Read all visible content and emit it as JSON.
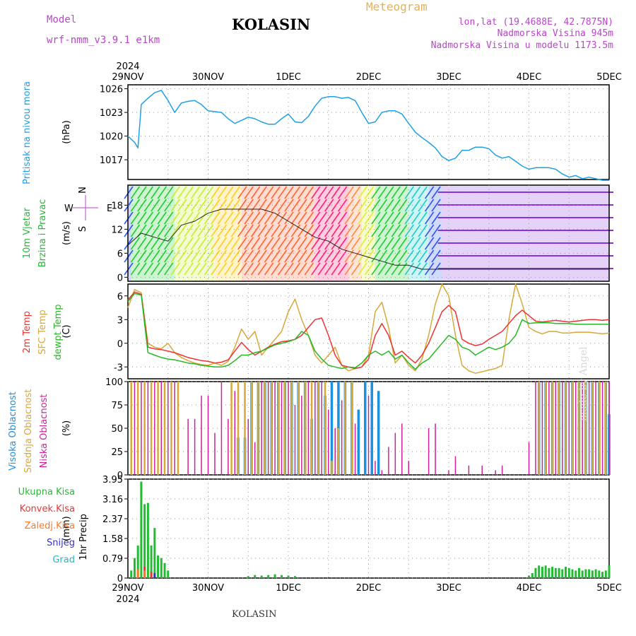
{
  "header": {
    "model_label": "Model",
    "model_name": "wrf-nmm_v3.9.1 e1km",
    "station": "KOLASIN",
    "chart_kind": "Meteogram",
    "lonlat": "lon,lat (19.4688E, 42.7875N)",
    "elevation": "Nadmorska Visina 945m",
    "model_elevation": "Nadmorska Visina u modelu 1173.5m",
    "credit": "made by Angel",
    "footer_station": "KOLASIN"
  },
  "x_axis": {
    "year_top": "2024",
    "year_bottom": "2024",
    "day_labels": [
      "29NOV",
      "30NOV",
      "1DEC",
      "2DEC",
      "3DEC",
      "4DEC",
      "5DEC"
    ],
    "range_hours": [
      0,
      144
    ]
  },
  "colors": {
    "pressure": "#1ea0e6",
    "temp2m": "#ee3333",
    "sfc": "#d8a838",
    "dewpt": "#22bb22",
    "high_cloud": "#1e90e0",
    "mid_cloud": "#d8a838",
    "low_cloud": "#cc2299",
    "total_precip": "#22bb33",
    "conv_precip": "#ee3333",
    "frz_precip": "#ff7722",
    "snow": "#3333cc",
    "graupel": "#22bbbb"
  },
  "chart_data": [
    {
      "type": "line",
      "panel": "pressure",
      "ylabel": "Pritisak na nivou mora",
      "unit": "(hPa)",
      "yticks": [
        "1026",
        "1023",
        "1020",
        "1017"
      ],
      "ylim": [
        1014.5,
        1026.5
      ],
      "x_hours": [
        0,
        2,
        3,
        4,
        6,
        8,
        10,
        12,
        14,
        16,
        18,
        20,
        22,
        24,
        26,
        28,
        30,
        32,
        34,
        36,
        38,
        40,
        42,
        44,
        46,
        48,
        50,
        52,
        54,
        56,
        58,
        60,
        62,
        64,
        66,
        68,
        70,
        72,
        74,
        76,
        78,
        80,
        82,
        84,
        86,
        88,
        90,
        92,
        94,
        96,
        98,
        100,
        102,
        104,
        106,
        108,
        110,
        112,
        114,
        116,
        118,
        120,
        122,
        124,
        126,
        128,
        130,
        132,
        134,
        136,
        138,
        140,
        142,
        144
      ],
      "series": [
        {
          "values": [
            1020,
            1019.2,
            1018.5,
            1024,
            1024.8,
            1025.5,
            1025.8,
            1024.5,
            1023,
            1024.2,
            1024.4,
            1024.5,
            1024,
            1023.2,
            1023.1,
            1023,
            1022.2,
            1021.6,
            1022,
            1022.4,
            1022.2,
            1021.8,
            1021.5,
            1021.5,
            1022.2,
            1022.8,
            1021.8,
            1021.7,
            1022.5,
            1023.8,
            1024.8,
            1025,
            1025,
            1024.8,
            1024.9,
            1024.5,
            1023,
            1021.6,
            1021.8,
            1023,
            1023.2,
            1023.2,
            1022.8,
            1021.6,
            1020.5,
            1019.8,
            1019.2,
            1018.5,
            1017.4,
            1016.9,
            1017.2,
            1018.2,
            1018.2,
            1018.6,
            1018.6,
            1018.4,
            1017.6,
            1017.2,
            1017.4,
            1016.8,
            1016.2,
            1015.8,
            1016,
            1016,
            1016,
            1015.8,
            1015.2,
            1014.8,
            1015,
            1014.6,
            1014.8,
            1014.6,
            1014.4,
            1014.4
          ]
        }
      ]
    },
    {
      "type": "line",
      "panel": "wind",
      "ylabel": [
        "10m Vjetar",
        "Brzina i Pravac"
      ],
      "unit": "(m/s)",
      "compass": [
        "N",
        "W",
        "E",
        "S"
      ],
      "yticks": [
        "18",
        "12",
        "6",
        "0"
      ],
      "ylim": [
        -1,
        23
      ],
      "x_hours": [
        0,
        4,
        8,
        12,
        16,
        20,
        24,
        28,
        32,
        36,
        40,
        44,
        48,
        52,
        56,
        60,
        64,
        68,
        72,
        76,
        80,
        84,
        88,
        92,
        96,
        100,
        104,
        108,
        112,
        116,
        120,
        124,
        128,
        132,
        136,
        140,
        144
      ],
      "series": [
        {
          "values": [
            8,
            11,
            10,
            9,
            13,
            14,
            16,
            17,
            17,
            17,
            17,
            16,
            14,
            12,
            10,
            9,
            7,
            6,
            5,
            4,
            3,
            3,
            2,
            2,
            2,
            2,
            2,
            2,
            2,
            2,
            2,
            2,
            2,
            2,
            2,
            2,
            2
          ]
        }
      ]
    },
    {
      "type": "line",
      "panel": "temperature",
      "ylabel": [
        "2m Temp",
        "SFC Temp",
        "dewpt Temp"
      ],
      "unit": "(C)",
      "yticks": [
        "6",
        "3",
        "0",
        "-3"
      ],
      "ylim": [
        -4.5,
        7.5
      ],
      "x_hours": [
        0,
        2,
        4,
        6,
        8,
        10,
        12,
        14,
        16,
        18,
        20,
        22,
        24,
        26,
        28,
        30,
        32,
        34,
        36,
        38,
        40,
        42,
        44,
        46,
        48,
        50,
        52,
        54,
        56,
        58,
        60,
        62,
        64,
        66,
        68,
        70,
        72,
        74,
        76,
        78,
        80,
        82,
        84,
        86,
        88,
        90,
        92,
        94,
        96,
        98,
        100,
        102,
        104,
        106,
        108,
        110,
        112,
        114,
        116,
        118,
        120,
        122,
        124,
        126,
        128,
        130,
        132,
        134,
        136,
        138,
        140,
        142,
        144
      ],
      "series": [
        {
          "name": "2m Temp",
          "values": [
            5.5,
            6.5,
            6.2,
            -0.5,
            -0.7,
            -0.8,
            -1,
            -1.2,
            -1.5,
            -1.8,
            -2,
            -2.2,
            -2.3,
            -2.5,
            -2.4,
            -2.1,
            -1,
            0.1,
            -0.8,
            -1.5,
            -1,
            -0.5,
            -0.1,
            0.2,
            0.3,
            0.5,
            1,
            2,
            3,
            3.2,
            1,
            -1.5,
            -2.8,
            -3,
            -3.2,
            -3,
            -2,
            1,
            2.5,
            1,
            -1.5,
            -1,
            -1.8,
            -2.5,
            -1.5,
            0,
            2,
            4,
            4.8,
            4,
            0.5,
            0,
            -0.3,
            -0.1,
            0.5,
            1,
            1.5,
            2.5,
            3.5,
            4.2,
            3.5,
            2.8,
            2.7,
            2.8,
            2.9,
            2.8,
            2.7,
            2.8,
            2.9,
            3,
            3,
            2.9,
            3
          ]
        },
        {
          "name": "SFC Temp",
          "values": [
            4.5,
            6.8,
            6.4,
            0,
            -0.5,
            -0.7,
            0,
            -1.2,
            -1.8,
            -2.2,
            -2.5,
            -2.7,
            -2.8,
            -2.5,
            -2.8,
            -2.3,
            -0.5,
            1.8,
            0.5,
            1.5,
            -1.5,
            -0.5,
            0.5,
            1.5,
            4,
            5.6,
            3,
            1,
            -1.5,
            -2.5,
            -1.5,
            -0.5,
            -2.8,
            -3.5,
            -3.2,
            -3,
            -1.5,
            4,
            5.2,
            2,
            -2.5,
            -1.5,
            -2.8,
            -3.5,
            -2,
            1,
            5,
            7.5,
            6,
            1,
            -2.8,
            -3.5,
            -3.8,
            -3.6,
            -3.4,
            -3.2,
            -2.8,
            3,
            7.5,
            5,
            2,
            1.5,
            1.2,
            1.5,
            1.5,
            1.3,
            1.3,
            1.4,
            1.4,
            1.4,
            1.3,
            1.2,
            1.3
          ]
        },
        {
          "name": "dewpt Temp",
          "values": [
            5.3,
            6.3,
            6.1,
            -1.2,
            -1.5,
            -1.8,
            -2,
            -2.1,
            -2.3,
            -2.5,
            -2.6,
            -2.8,
            -2.9,
            -3,
            -3,
            -2.8,
            -2.2,
            -1.5,
            -1.5,
            -1.2,
            -1,
            -0.6,
            -0.2,
            0,
            0.2,
            0.5,
            1.5,
            1,
            -1,
            -2,
            -2.8,
            -3,
            -3.2,
            -3,
            -3.1,
            -2.5,
            -1.5,
            -1,
            -1.5,
            -1,
            -2,
            -1.5,
            -2.5,
            -3.3,
            -2.5,
            -2,
            -1,
            0,
            1,
            0.5,
            -0.5,
            -0.8,
            -1.5,
            -1,
            -0.5,
            -0.8,
            -0.5,
            0,
            1,
            3,
            2.5,
            2.6,
            2.6,
            2.6,
            2.5,
            2.5,
            2.5,
            2.4,
            2.4,
            2.4,
            2.4,
            2.4,
            2.4
          ]
        }
      ]
    },
    {
      "type": "bar",
      "panel": "cloud",
      "ylabel": [
        "Visoka Oblacnost",
        "Srednja Oblacnost",
        "Niska Oblacnost"
      ],
      "unit": "(%)",
      "yticks": [
        "100",
        "75",
        "50",
        "25",
        "0"
      ],
      "ylim": [
        0,
        100
      ],
      "series": [
        {
          "name": "Visoka Oblacnost",
          "x_hours": [
            33,
            35,
            37,
            39,
            41,
            43,
            45,
            47,
            49,
            51,
            53,
            55,
            57,
            59,
            61,
            63,
            65,
            67,
            69,
            71,
            73,
            75,
            123,
            125,
            127,
            129,
            131,
            133,
            135,
            137,
            139,
            141,
            143,
            144
          ],
          "values": [
            40,
            40,
            100,
            100,
            100,
            100,
            100,
            100,
            100,
            100,
            100,
            60,
            100,
            85,
            100,
            100,
            100,
            100,
            70,
            100,
            100,
            90,
            100,
            100,
            100,
            100,
            100,
            100,
            100,
            100,
            100,
            100,
            100,
            65
          ]
        },
        {
          "name": "Srednja Oblacnost",
          "x_hours": [
            1,
            3,
            5,
            7,
            9,
            11,
            13,
            15,
            31,
            33,
            35,
            37,
            39,
            41,
            43,
            45,
            47,
            49,
            51,
            53,
            55,
            57,
            59,
            61,
            63,
            65,
            67,
            123,
            125,
            127,
            129,
            131,
            133,
            135,
            137,
            139,
            141,
            143
          ],
          "values": [
            100,
            100,
            100,
            100,
            100,
            100,
            100,
            100,
            100,
            100,
            100,
            100,
            100,
            100,
            100,
            100,
            100,
            100,
            100,
            100,
            100,
            100,
            100,
            15,
            50,
            100,
            100,
            100,
            100,
            100,
            100,
            100,
            100,
            100,
            100,
            100,
            100,
            100
          ]
        },
        {
          "name": "Niska Oblacnost",
          "x_hours": [
            2,
            4,
            6,
            8,
            10,
            12,
            14,
            18,
            20,
            22,
            24,
            26,
            28,
            30,
            32,
            36,
            38,
            40,
            42,
            44,
            46,
            48,
            50,
            52,
            54,
            56,
            58,
            60,
            62,
            64,
            68,
            72,
            74,
            76,
            78,
            80,
            82,
            84,
            90,
            92,
            96,
            98,
            102,
            106,
            110,
            112,
            116,
            120,
            122,
            124,
            126,
            128,
            130,
            132,
            134,
            136,
            138,
            140,
            142,
            144
          ],
          "values": [
            100,
            100,
            100,
            100,
            100,
            100,
            100,
            60,
            60,
            85,
            85,
            45,
            100,
            60,
            90,
            60,
            35,
            100,
            100,
            100,
            100,
            100,
            75,
            85,
            100,
            100,
            100,
            70,
            50,
            80,
            55,
            85,
            15,
            5,
            30,
            45,
            55,
            15,
            50,
            55,
            5,
            20,
            10,
            10,
            5,
            10,
            0,
            35,
            100,
            100,
            100,
            100,
            100,
            100,
            100,
            100,
            100,
            100,
            100,
            100
          ]
        }
      ]
    },
    {
      "type": "bar",
      "panel": "precipitation",
      "ylabel": "1hr Precip",
      "unit": "(mm)",
      "legend": [
        "Ukupna Kisa",
        "Konvek.Kisa",
        "Zaledj.Kisa",
        "Snijeg",
        "Grad"
      ],
      "yticks": [
        "3.95",
        "3.16",
        "2.37",
        "1.58",
        "0.79",
        "0"
      ],
      "ylim": [
        0,
        3.95
      ],
      "series": [
        {
          "name": "Ukupna Kisa",
          "x_hours": [
            1,
            2,
            3,
            4,
            5,
            6,
            7,
            8,
            9,
            10,
            11,
            12,
            36,
            38,
            40,
            42,
            44,
            46,
            48,
            50,
            120,
            121,
            122,
            123,
            124,
            125,
            126,
            127,
            128,
            129,
            130,
            131,
            132,
            133,
            134,
            135,
            136,
            137,
            138,
            139,
            140,
            141,
            142,
            143,
            144
          ],
          "values": [
            0.3,
            0.8,
            1.3,
            3.85,
            2.95,
            3.0,
            1.3,
            2.0,
            0.9,
            0.8,
            0.6,
            0.3,
            0.08,
            0.12,
            0.1,
            0.12,
            0.15,
            0.12,
            0.1,
            0.08,
            0.1,
            0.2,
            0.4,
            0.5,
            0.45,
            0.5,
            0.4,
            0.45,
            0.4,
            0.4,
            0.35,
            0.45,
            0.4,
            0.35,
            0.3,
            0.4,
            0.3,
            0.35,
            0.35,
            0.3,
            0.35,
            0.3,
            0.25,
            0.3,
            0.5
          ]
        },
        {
          "name": "Konvek.Kisa",
          "x_hours": [
            5,
            7
          ],
          "values": [
            0.45,
            0.25
          ]
        },
        {
          "name": "Zaledj.Kisa",
          "x_hours": [
            3,
            5
          ],
          "values": [
            0.35,
            0.3
          ]
        },
        {
          "name": "Snijeg",
          "x_hours": [
            8
          ],
          "values": [
            0.2
          ]
        },
        {
          "name": "Grad",
          "x_hours": [],
          "values": []
        }
      ]
    }
  ]
}
